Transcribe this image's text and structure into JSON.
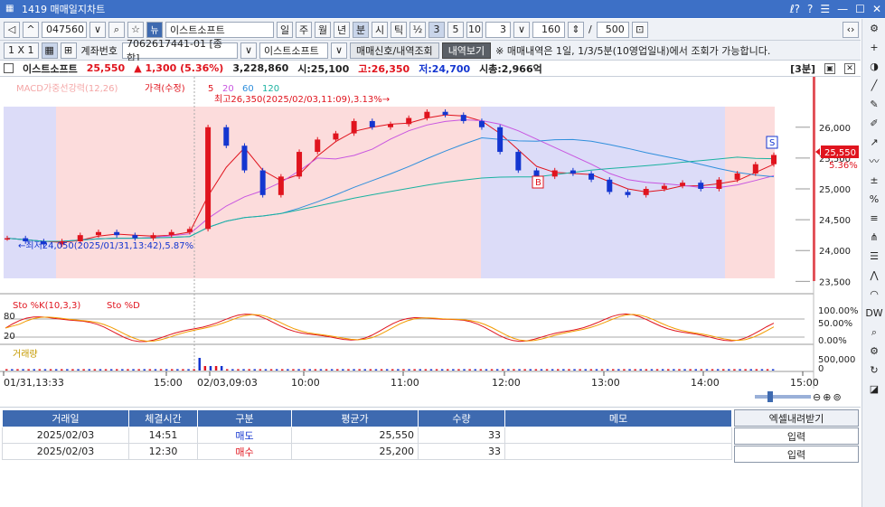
{
  "window": {
    "title": "1419 매매일지차트",
    "buttons": [
      "ℓ?",
      "?",
      "☰",
      "—",
      "☐",
      "✕"
    ]
  },
  "toolbar1": {
    "code": "047560",
    "badge": "뉴",
    "name": "이스트소프트",
    "periods": [
      "일",
      "주",
      "월",
      "년",
      "분",
      "시",
      "틱"
    ],
    "selected_period": "분",
    "ratio_icon": "½",
    "minutes": [
      "3",
      "5",
      "10"
    ],
    "selected_minute": "3",
    "interval_value": "3",
    "count_value": "160",
    "slash": "/",
    "max_value": "500",
    "nav_right": "‹›"
  },
  "toolbar2": {
    "grid_label": "1 X 1",
    "account_label": "계좌번호",
    "account_value": "7062617441-01 [종합]",
    "stock_value": "이스트소프트",
    "signal_button": "매매신호/내역조회",
    "history_button": "내역보기",
    "notice": "※ 매매내역은 1일, 1/3/5분(10영업일내)에서 조회가 가능합니다."
  },
  "info": {
    "name": "이스트소프트",
    "price": "25,550",
    "change": "▲ 1,300 (5.36%)",
    "volume": "3,228,860",
    "open": "시:25,100",
    "high": "고:26,350",
    "low": "저:24,700",
    "mcap": "시총:2,966억",
    "period_tag": "[3분]"
  },
  "legend": {
    "macd": "MACD가중선강력(12,26)",
    "price": "가격(수정)",
    "ma5": "5",
    "ma20": "20",
    "ma60": "60",
    "ma120": "120",
    "stoch": "Sto %K(10,3,3)",
    "stochD": "Sto %D",
    "volume": "거래량"
  },
  "annotations": {
    "high_note": "최고26,350(2025/02/03,11:09),3.13%→",
    "low_note": "←최저24,050(2025/01/31,13:42),5.87%",
    "current_price": "25,550",
    "current_change": "5.36%",
    "sell_marker": "S",
    "buy_marker": "B"
  },
  "price_axis": [
    "26,000",
    "25,500",
    "25,000",
    "24,500",
    "24,000",
    "23,500"
  ],
  "stoch_axis": [
    "100.00%",
    "50.00%",
    "0.00%"
  ],
  "stoch_left": [
    "80",
    "20"
  ],
  "volume_axis": [
    "500,000",
    "0"
  ],
  "time_axis": [
    "01/31,13:33",
    "15:00",
    "02/03,09:03",
    "10:00",
    "11:00",
    "12:00",
    "13:00",
    "14:00",
    "15:00"
  ],
  "colors": {
    "up": "#e0141e",
    "down": "#1436d0",
    "ma5": "#e0141e",
    "ma20": "#c855e0",
    "ma60": "#2f8fdc",
    "ma120": "#1ab2a0",
    "bg_red": "#fcdcdc",
    "bg_blue": "#dcdcf8"
  },
  "chart_data": {
    "type": "candlestick",
    "x": [
      "01/31,13:33",
      "15:00",
      "02/03,09:03",
      "10:00",
      "11:00",
      "12:00",
      "13:00",
      "14:00",
      "15:00"
    ],
    "ylim": [
      23300,
      26700
    ],
    "price_close_approx": [
      24200,
      24150,
      24100,
      24150,
      24250,
      24300,
      24250,
      24200,
      24250,
      24300,
      24350,
      26000,
      25700,
      25300,
      24900,
      25200,
      25600,
      25800,
      25900,
      26100,
      26000,
      26050,
      26150,
      26250,
      26200,
      26100,
      26000,
      25600,
      25300,
      25200,
      25300,
      25250,
      25150,
      24950,
      24900,
      25000,
      25050,
      25100,
      25000,
      25150,
      25250,
      25400,
      25550
    ],
    "trades": [
      {
        "date": "2025/02/03",
        "time": "14:51",
        "type": "매도",
        "price": "25,550",
        "qty": "33"
      },
      {
        "date": "2025/02/03",
        "time": "12:30",
        "type": "매수",
        "price": "25,200",
        "qty": "33"
      }
    ]
  },
  "table": {
    "headers": [
      "거래일",
      "체결시간",
      "구분",
      "평균가",
      "수량",
      "메모"
    ],
    "rows": [
      [
        "2025/02/03",
        "14:51",
        "매도",
        "25,550",
        "33",
        ""
      ],
      [
        "2025/02/03",
        "12:30",
        "매수",
        "25,200",
        "33",
        ""
      ]
    ],
    "excel_header": "엑셀내려받기",
    "input_label": "입력"
  }
}
